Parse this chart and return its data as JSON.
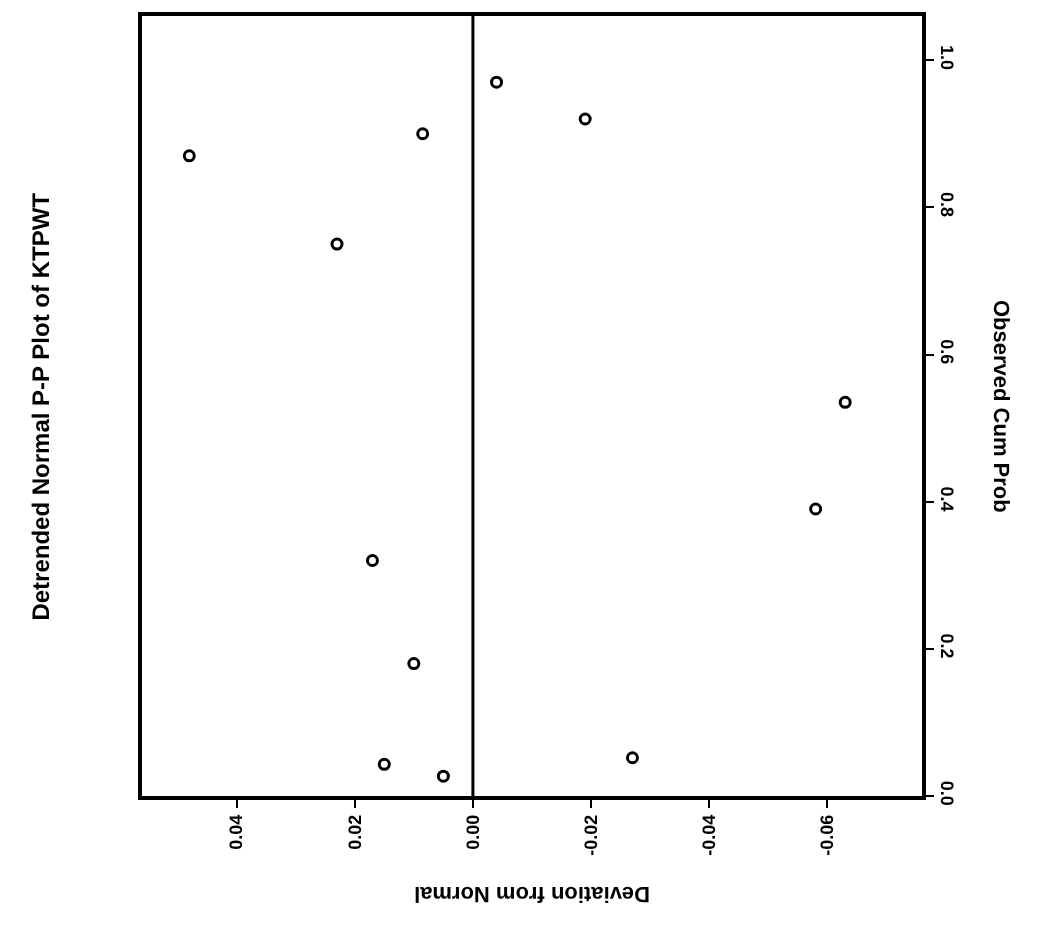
{
  "chart_data": {
    "type": "scatter",
    "title": "Detrended Normal P-P Plot of KTPWT",
    "xlabel": "Deviation from Normal",
    "ylabel": "Observed Cum Prob",
    "x": [
      0.005,
      0.015,
      -0.027,
      0.01,
      0.017,
      -0.058,
      -0.063,
      0.023,
      0.048,
      0.0085,
      -0.019,
      -0.004
    ],
    "values": [
      0.027,
      0.043,
      0.052,
      0.18,
      0.32,
      0.39,
      0.535,
      0.75,
      0.87,
      0.9,
      0.92,
      0.97
    ],
    "color": "#000000",
    "marker": "circle",
    "grid": false,
    "xlim": [
      0.056,
      -0.076
    ],
    "ylim": [
      0,
      1.06
    ],
    "xticks": [
      {
        "value": 0.04,
        "label": "0.04"
      },
      {
        "value": 0.02,
        "label": "0.02"
      },
      {
        "value": 0,
        "label": "0.00"
      },
      {
        "value": -0.02,
        "label": "-0.02"
      },
      {
        "value": -0.04,
        "label": "-0.04"
      },
      {
        "value": -0.06,
        "label": "-0.06"
      }
    ],
    "yticks": [
      {
        "value": 0,
        "label": "0.0"
      },
      {
        "value": 0.2,
        "label": "0.2"
      },
      {
        "value": 0.4,
        "label": "0.4"
      },
      {
        "value": 0.6,
        "label": "0.6"
      },
      {
        "value": 0.8,
        "label": "0.8"
      },
      {
        "value": 1,
        "label": "1.0"
      }
    ],
    "ref_lines": [
      {
        "axis": "x",
        "value": 0,
        "color": "#000000",
        "line_style": "solid"
      }
    ]
  }
}
